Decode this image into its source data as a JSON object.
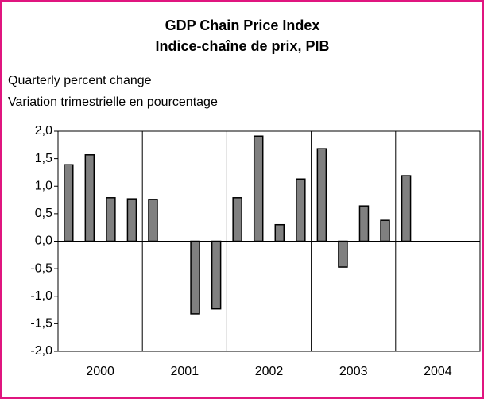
{
  "chart_data": {
    "type": "bar",
    "title": "GDP Chain Price Index",
    "subtitle": "Indice-chaîne de prix, PIB",
    "y_label": "Quarterly percent change",
    "y_label_fr": "Variation trimestrielle en pourcentage",
    "groups": [
      "2000",
      "2001",
      "2002",
      "2003",
      "2004"
    ],
    "values": [
      1.39,
      1.57,
      0.79,
      0.77,
      0.76,
      0,
      -1.32,
      -1.23,
      0.79,
      1.91,
      0.3,
      1.13,
      1.68,
      -0.47,
      0.64,
      0.38,
      1.19,
      null,
      null,
      null
    ],
    "color": "#808080",
    "ylim": [
      -2,
      2
    ],
    "yticks": [
      {
        "value": 2,
        "label": "2,0"
      },
      {
        "value": 1.5,
        "label": "1,5"
      },
      {
        "value": 1,
        "label": "1,0"
      },
      {
        "value": 0.5,
        "label": "0,5"
      },
      {
        "value": 0,
        "label": "0,0"
      },
      {
        "value": -0.5,
        "label": "-0,5"
      },
      {
        "value": -1,
        "label": "-1,0"
      },
      {
        "value": -1.5,
        "label": "-1,5"
      },
      {
        "value": -2,
        "label": "-2,0"
      }
    ]
  }
}
